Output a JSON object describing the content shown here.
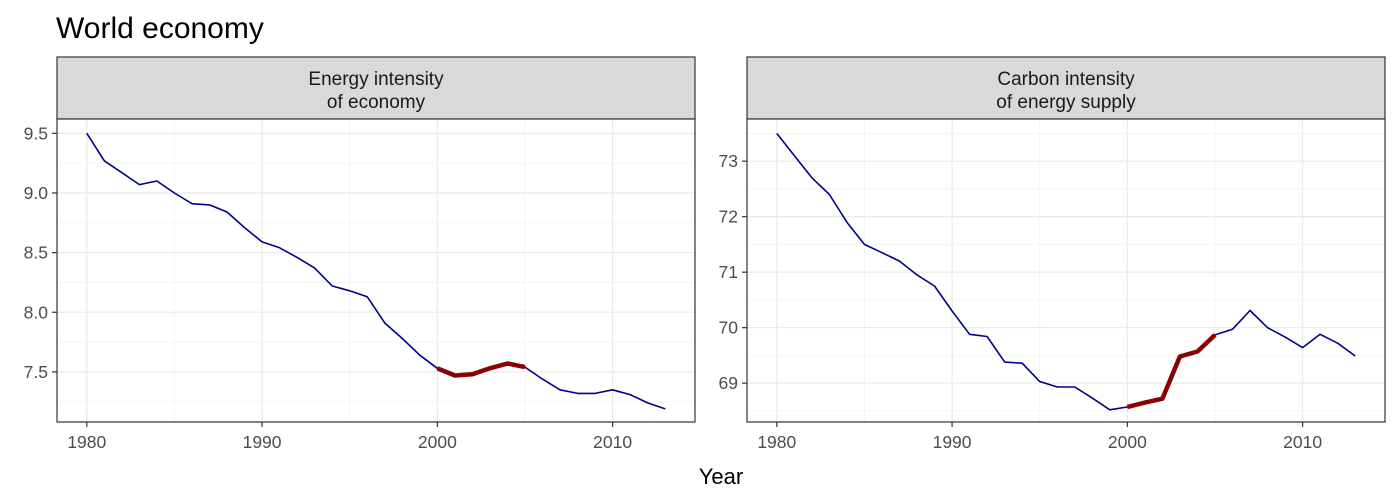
{
  "title": "World economy",
  "chart_data": {
    "type": "line",
    "xlabel": "Year",
    "panels": [
      {
        "strip": [
          "Energy intensity",
          "of economy"
        ],
        "xlim": [
          1978.3,
          2014.7
        ],
        "ylim": [
          7.08,
          9.62
        ],
        "xticks": [
          1980,
          1990,
          2000,
          2010
        ],
        "yticks": [
          7.5,
          8.0,
          8.5,
          9.0,
          9.5
        ],
        "yticklabels": [
          "7.5",
          "8.0",
          "8.5",
          "9.0",
          "9.5"
        ],
        "highlight": {
          "from": 2000,
          "to": 2005,
          "color": "#8b0000"
        },
        "line_color": "#00008b",
        "x": [
          1980,
          1981,
          1982,
          1983,
          1984,
          1985,
          1986,
          1987,
          1988,
          1989,
          1990,
          1991,
          1992,
          1993,
          1994,
          1995,
          1996,
          1997,
          1998,
          1999,
          2000,
          2001,
          2002,
          2003,
          2004,
          2005,
          2006,
          2007,
          2008,
          2009,
          2010,
          2011,
          2012,
          2013
        ],
        "y": [
          9.5,
          9.27,
          9.17,
          9.07,
          9.1,
          9.0,
          8.91,
          8.9,
          8.84,
          8.71,
          8.59,
          8.54,
          8.46,
          8.37,
          8.22,
          8.18,
          8.13,
          7.91,
          7.78,
          7.64,
          7.53,
          7.47,
          7.48,
          7.53,
          7.57,
          7.54,
          7.44,
          7.35,
          7.32,
          7.32,
          7.35,
          7.31,
          7.24,
          7.19
        ]
      },
      {
        "strip": [
          "Carbon intensity",
          "of energy supply"
        ],
        "xlim": [
          1978.3,
          2014.7
        ],
        "ylim": [
          68.3,
          73.76
        ],
        "xticks": [
          1980,
          1990,
          2000,
          2010
        ],
        "yticks": [
          69,
          70,
          71,
          72,
          73
        ],
        "yticklabels": [
          "69",
          "70",
          "71",
          "72",
          "73"
        ],
        "highlight": {
          "from": 2000,
          "to": 2005,
          "color": "#8b0000"
        },
        "line_color": "#00008b",
        "x": [
          1980,
          1981,
          1982,
          1983,
          1984,
          1985,
          1986,
          1987,
          1988,
          1989,
          1990,
          1991,
          1992,
          1993,
          1994,
          1995,
          1996,
          1997,
          1998,
          1999,
          2000,
          2001,
          2002,
          2003,
          2004,
          2005,
          2006,
          2007,
          2008,
          2009,
          2010,
          2011,
          2012,
          2013
        ],
        "y": [
          73.5,
          73.1,
          72.7,
          72.4,
          71.9,
          71.5,
          71.35,
          71.2,
          70.95,
          70.75,
          70.3,
          69.88,
          69.84,
          69.38,
          69.36,
          69.03,
          68.93,
          68.93,
          68.73,
          68.52,
          68.57,
          68.65,
          68.72,
          69.48,
          69.57,
          69.87,
          69.97,
          70.31,
          70.0,
          69.83,
          69.64,
          69.88,
          69.72,
          69.49
        ]
      }
    ]
  }
}
